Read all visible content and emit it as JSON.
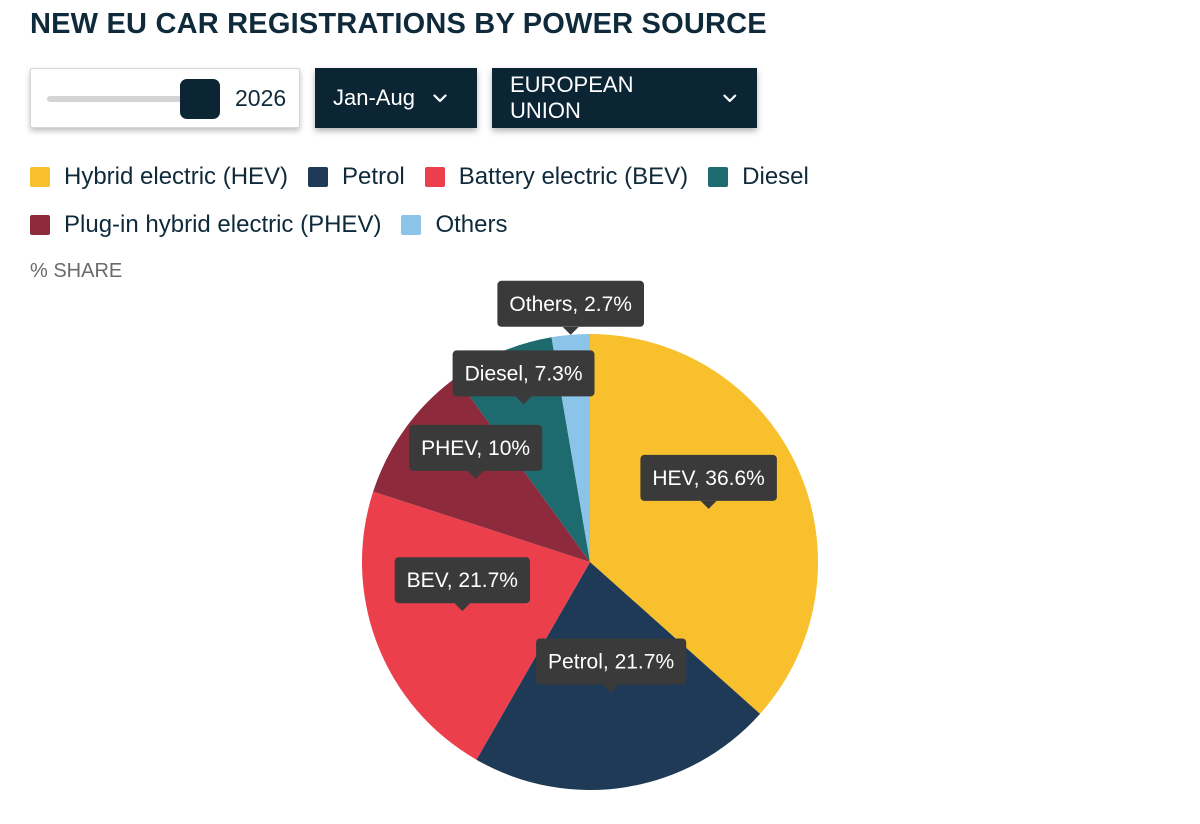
{
  "header": {
    "title": "NEW EU CAR REGISTRATIONS BY POWER SOURCE"
  },
  "controls": {
    "year_slider": {
      "value": "2026"
    },
    "period_dropdown": {
      "label": "Jan-Aug"
    },
    "region_dropdown": {
      "label": "EUROPEAN UNION"
    }
  },
  "unit_label": "% SHARE",
  "chart_data": {
    "type": "pie",
    "unit": "%",
    "slices": [
      {
        "name": "Hybrid electric (HEV)",
        "short": "HEV",
        "value": 36.6,
        "label": "HEV, 36.6%",
        "color": "#f8c02c"
      },
      {
        "name": "Petrol",
        "short": "Petrol",
        "value": 21.7,
        "label": "Petrol, 21.7%",
        "color": "#1e3a56"
      },
      {
        "name": "Battery electric (BEV)",
        "short": "BEV",
        "value": 21.7,
        "label": "BEV, 21.7%",
        "color": "#ec3f4c"
      },
      {
        "name": "Plug-in hybrid electric (PHEV)",
        "short": "PHEV",
        "value": 10,
        "label": "PHEV, 10%",
        "color": "#8d2a3b"
      },
      {
        "name": "Diesel",
        "short": "Diesel",
        "value": 7.3,
        "label": "Diesel, 7.3%",
        "color": "#1d6b6e"
      },
      {
        "name": "Others",
        "short": "Others",
        "value": 2.7,
        "label": "Others, 2.7%",
        "color": "#8cc3e8"
      }
    ],
    "legend_order": [
      "Hybrid electric (HEV)",
      "Petrol",
      "Battery electric (BEV)",
      "Diesel",
      "Plug-in hybrid electric (PHEV)",
      "Others"
    ],
    "legend_placement": "top"
  },
  "colors": {
    "dark_navy": "#0b2535",
    "tooltip_bg": "#3a3a3a"
  },
  "icons": {
    "dropdown": "chevron-down-icon"
  }
}
